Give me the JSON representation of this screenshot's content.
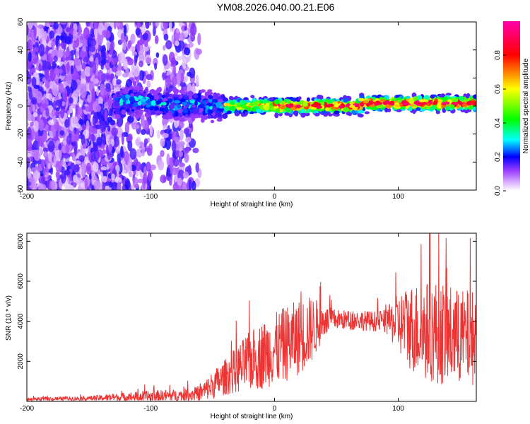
{
  "title": "YM08.2026.040.00.21.E06",
  "chart_data": [
    {
      "type": "heatmap",
      "xlabel": "Height of straight line (km)",
      "ylabel": "Frequency (Hz)",
      "xlim": [
        -200,
        163
      ],
      "ylim": [
        -60,
        60
      ],
      "xticks": [
        -200,
        -100,
        0,
        100
      ],
      "xtick_labels": [
        "-200",
        "-100",
        "0",
        "100"
      ],
      "yticks": [
        -60,
        -40,
        -20,
        0,
        20,
        40,
        60
      ],
      "ytick_labels": [
        "-60",
        "-40",
        "-20",
        "0",
        "20",
        "40",
        "60"
      ],
      "colorbar": {
        "label": "Normalized spectral amplitude",
        "range": [
          0,
          1
        ],
        "ticks": [
          0.0,
          0.2,
          0.4,
          0.6,
          0.8
        ],
        "tick_labels": [
          "0.0",
          "0.2",
          "0.4",
          "0.6",
          "0.8"
        ],
        "colormap": [
          "#ffffff",
          "#d9b0ff",
          "#9a3cff",
          "#5a00ff",
          "#0000ff",
          "#00ffff",
          "#00ff00",
          "#ffff00",
          "#ff0000",
          "#ff00aa"
        ]
      },
      "ridge": {
        "description": "narrow high-amplitude band near 0 Hz",
        "x_start": -130,
        "x_end": 163,
        "center_hz": 0,
        "peak_amplitude": 0.95
      },
      "noise_region": {
        "x_start": -200,
        "x_end": -65,
        "level": 0.15
      }
    },
    {
      "type": "line",
      "xlabel": "Height of straight line (km)",
      "ylabel": "SNR (10 * v/v)",
      "xlim": [
        -200,
        163
      ],
      "ylim": [
        0,
        8400
      ],
      "xticks": [
        -200,
        -100,
        0,
        100
      ],
      "xtick_labels": [
        "-200",
        "-100",
        "0",
        "100"
      ],
      "yticks": [
        2000,
        4000,
        6000,
        8000
      ],
      "ytick_labels": [
        "2000",
        "4000",
        "6000",
        "8000"
      ],
      "color": "#ee3333",
      "envelope": {
        "x": [
          -200,
          -150,
          -100,
          -75,
          -60,
          -50,
          -40,
          -30,
          -20,
          -10,
          0,
          10,
          20,
          30,
          40,
          50,
          60,
          70,
          80,
          90,
          100,
          110,
          120,
          130,
          140,
          150,
          163
        ],
        "base": [
          100,
          150,
          250,
          300,
          400,
          800,
          1200,
          1600,
          2000,
          2300,
          2600,
          2900,
          3200,
          3600,
          4000,
          4100,
          4050,
          4050,
          4000,
          4000,
          3900,
          3700,
          3500,
          3500,
          3300,
          3200,
          3200
        ],
        "spread": [
          80,
          120,
          300,
          300,
          400,
          700,
          900,
          1200,
          1500,
          1700,
          1800,
          1900,
          1900,
          1700,
          800,
          500,
          500,
          500,
          500,
          600,
          1500,
          2200,
          2500,
          2600,
          2600,
          2400,
          2400
        ]
      }
    }
  ]
}
